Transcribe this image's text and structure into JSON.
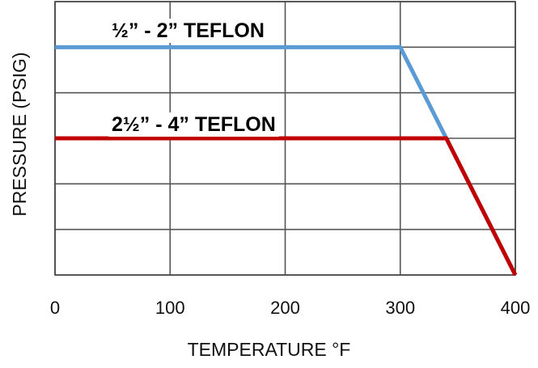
{
  "chart_data": {
    "type": "line",
    "title": "",
    "xlabel": "TEMPERATURE °F",
    "ylabel": "PRESSURE (PSIG)",
    "xlim": [
      0,
      400
    ],
    "x_ticks": [
      0,
      100,
      200,
      300,
      400
    ],
    "x_tick_labels": [
      "0",
      "100",
      "200",
      "300",
      "400"
    ],
    "ylim": [
      0,
      6
    ],
    "y_tick_labels_shown": false,
    "grid": true,
    "series": [
      {
        "name": "½” - 2” TEFLON",
        "color": "#5b9bd5",
        "points": [
          [
            0,
            5
          ],
          [
            300,
            5
          ],
          [
            400,
            0
          ]
        ]
      },
      {
        "name": "2½” - 4” TEFLON",
        "color": "#c00000",
        "points": [
          [
            0,
            3
          ],
          [
            340,
            3
          ],
          [
            400,
            0
          ]
        ]
      }
    ]
  }
}
